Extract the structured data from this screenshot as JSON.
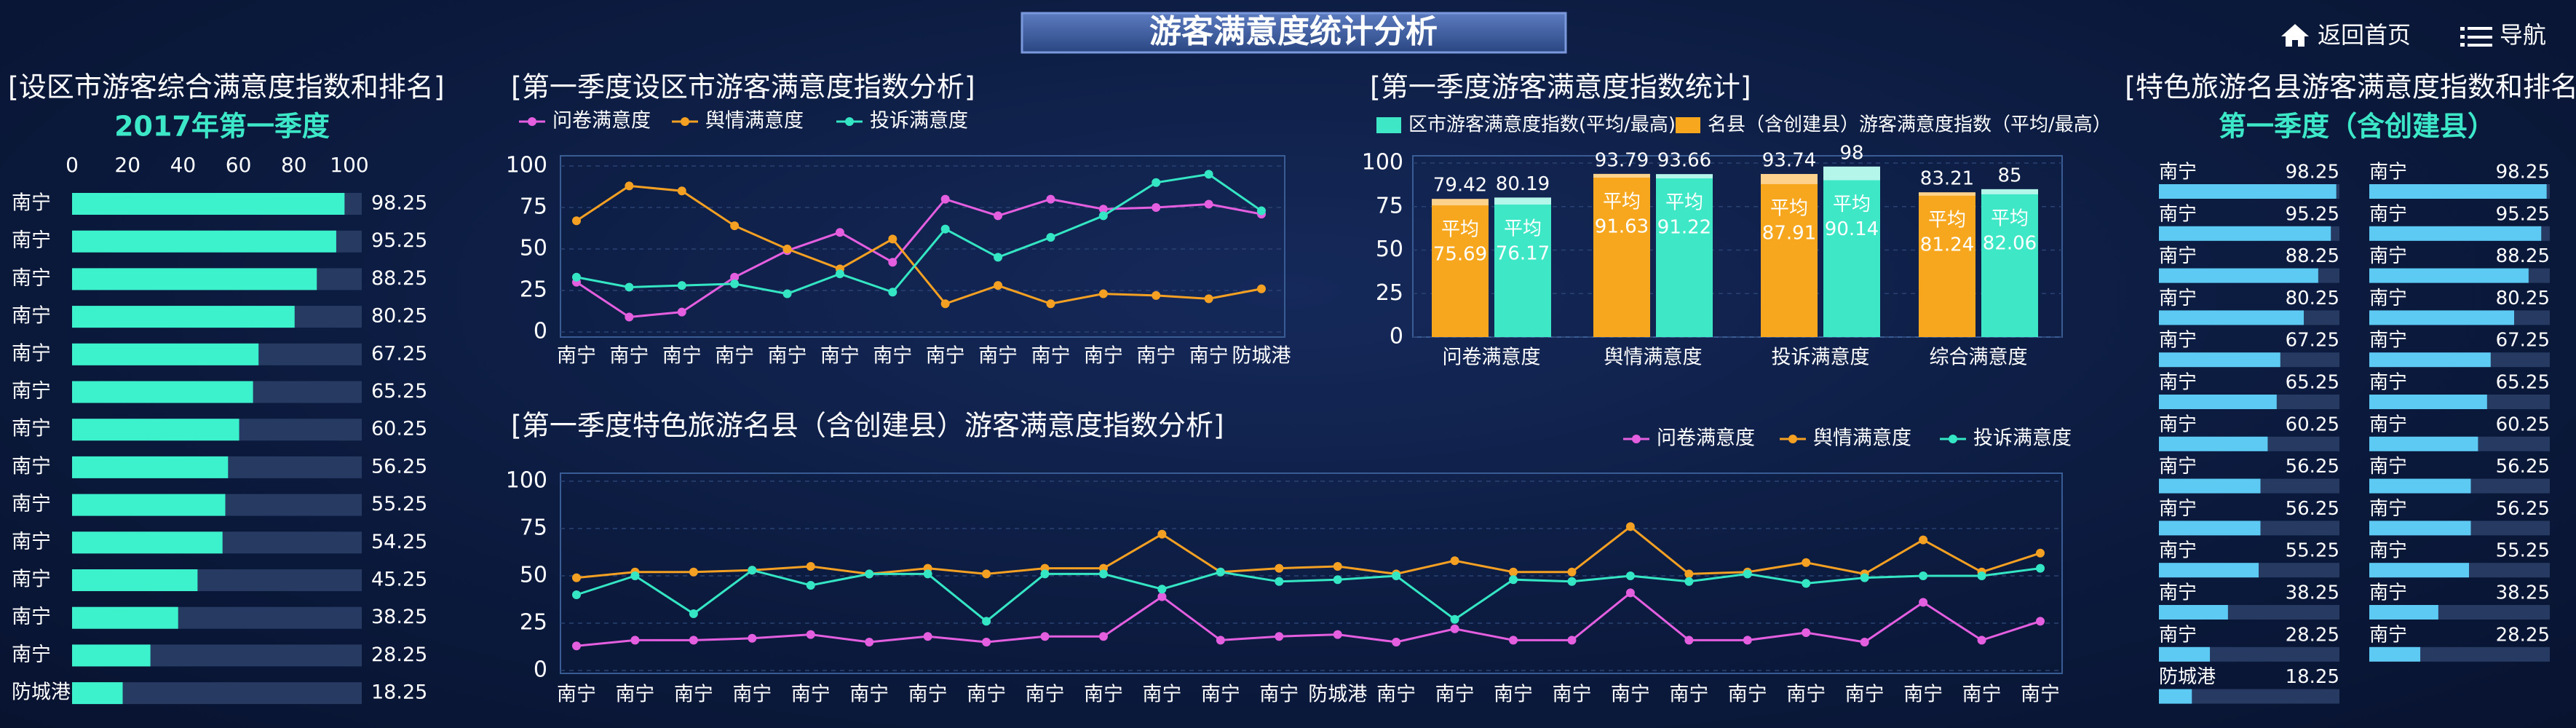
{
  "header": {
    "title": "游客满意度统计分析",
    "nav": [
      "返回首页",
      "导航"
    ]
  },
  "chart_data": [
    {
      "type": "hbar",
      "title": "[设区市游客综合满意度指数和排名]",
      "subtitle": "2017年第一季度",
      "categories": [
        "南宁",
        "南宁",
        "南宁",
        "南宁",
        "南宁",
        "南宁",
        "南宁",
        "南宁",
        "南宁",
        "南宁",
        "南宁",
        "南宁",
        "南宁",
        "防城港"
      ],
      "values": [
        98.25,
        95.25,
        88.25,
        80.25,
        67.25,
        65.25,
        60.25,
        56.25,
        55.25,
        54.25,
        45.25,
        38.25,
        28.25,
        18.25
      ],
      "color": "#3cf2cc",
      "xlim": [
        0,
        100
      ],
      "xticks": [
        0,
        20,
        40,
        60,
        80,
        100
      ]
    },
    {
      "type": "line",
      "title": "[第一季度设区市游客满意度指数分析]",
      "categories": [
        "南宁",
        "南宁",
        "南宁",
        "南宁",
        "南宁",
        "南宁",
        "南宁",
        "南宁",
        "南宁",
        "南宁",
        "南宁",
        "南宁",
        "南宁",
        "防城港"
      ],
      "series": [
        {
          "name": "问卷满意度",
          "color": "#e45ee0",
          "values": [
            30,
            9,
            12,
            33,
            49,
            60,
            42,
            80,
            70,
            80,
            74,
            75,
            77,
            71
          ]
        },
        {
          "name": "舆情满意度",
          "color": "#f4a023",
          "values": [
            67,
            88,
            85,
            64,
            50,
            38,
            56,
            17,
            28,
            17,
            23,
            22,
            20,
            26
          ]
        },
        {
          "name": "投诉满意度",
          "color": "#34e6c4",
          "values": [
            33,
            27,
            28,
            29,
            23,
            35,
            24,
            62,
            45,
            57,
            70,
            90,
            95,
            73
          ]
        }
      ],
      "ylim": [
        0,
        100
      ],
      "yticks": [
        0,
        25,
        50,
        75,
        100
      ],
      "grid": true,
      "legend": "top-left"
    },
    {
      "type": "range_bar",
      "title": "[第一季度游客满意度指数统计]",
      "categories": [
        "问卷满意度",
        "舆情满意度",
        "投诉满意度",
        "综合满意度"
      ],
      "avg_label": "平均",
      "series": [
        {
          "name": "区市游客满意度指数(平均/最高)",
          "color": "#3ee8c6",
          "light_color": "#b4f7ea",
          "values": [
            76.17,
            91.22,
            90.14,
            82.06
          ],
          "max": [
            80.19,
            93.66,
            98,
            85
          ]
        },
        {
          "name": "名县（含创建县）游客满意度指数（平均/最高）",
          "color": "#f7a71d",
          "light_color": "#fcd28c",
          "values": [
            75.69,
            91.63,
            87.91,
            81.24
          ],
          "max": [
            79.42,
            93.79,
            93.74,
            83.21
          ]
        }
      ],
      "ylim": [
        0,
        100
      ],
      "yticks": [
        0,
        25,
        50,
        75,
        100
      ],
      "grid": true
    },
    {
      "type": "line",
      "title": "[第一季度特色旅游名县（含创建县）游客满意度指数分析]",
      "categories": [
        "南宁",
        "南宁",
        "南宁",
        "南宁",
        "南宁",
        "南宁",
        "南宁",
        "南宁",
        "南宁",
        "南宁",
        "南宁",
        "南宁",
        "南宁",
        "防城港",
        "南宁",
        "南宁",
        "南宁",
        "南宁",
        "南宁",
        "南宁",
        "南宁",
        "南宁",
        "南宁",
        "南宁",
        "南宁",
        "南宁"
      ],
      "series": [
        {
          "name": "问卷满意度",
          "color": "#e45ee0",
          "values": [
            13,
            16,
            16,
            17,
            19,
            15,
            18,
            15,
            18,
            18,
            39,
            16,
            18,
            19,
            15,
            22,
            16,
            16,
            41,
            16,
            16,
            20,
            15,
            36,
            16,
            26
          ]
        },
        {
          "name": "舆情满意度",
          "color": "#f4a023",
          "values": [
            49,
            52,
            52,
            53,
            55,
            51,
            54,
            51,
            54,
            54,
            72,
            52,
            54,
            55,
            51,
            58,
            52,
            52,
            76,
            51,
            52,
            57,
            51,
            69,
            52,
            62
          ]
        },
        {
          "name": "投诉满意度",
          "color": "#34e6c4",
          "values": [
            40,
            50,
            30,
            53,
            45,
            51,
            51,
            26,
            51,
            51,
            43,
            52,
            47,
            48,
            50,
            27,
            48,
            47,
            50,
            47,
            51,
            46,
            49,
            50,
            50,
            54
          ]
        }
      ],
      "ylim": [
        0,
        100
      ],
      "yticks": [
        0,
        25,
        50,
        75,
        100
      ],
      "grid": true,
      "legend": "top-right"
    },
    {
      "type": "rank",
      "title": "[特色旅游名县游客满意度指数和排名]",
      "subtitle": "第一季度（含创建县）",
      "color": "#5ccaf2",
      "xlim": [
        0,
        100
      ],
      "columns": [
        {
          "categories": [
            "南宁",
            "南宁",
            "南宁",
            "南宁",
            "南宁",
            "南宁",
            "南宁",
            "南宁",
            "南宁",
            "南宁",
            "南宁",
            "南宁",
            "防城港"
          ],
          "values": [
            98.25,
            95.25,
            88.25,
            80.25,
            67.25,
            65.25,
            60.25,
            56.25,
            56.25,
            55.25,
            38.25,
            28.25,
            18.25
          ]
        },
        {
          "categories": [
            "南宁",
            "南宁",
            "南宁",
            "南宁",
            "南宁",
            "南宁",
            "南宁",
            "南宁",
            "南宁",
            "南宁",
            "南宁",
            "南宁"
          ],
          "values": [
            98.25,
            95.25,
            88.25,
            80.25,
            67.25,
            65.25,
            60.25,
            56.25,
            56.25,
            55.25,
            38.25,
            28.25
          ]
        }
      ]
    }
  ]
}
